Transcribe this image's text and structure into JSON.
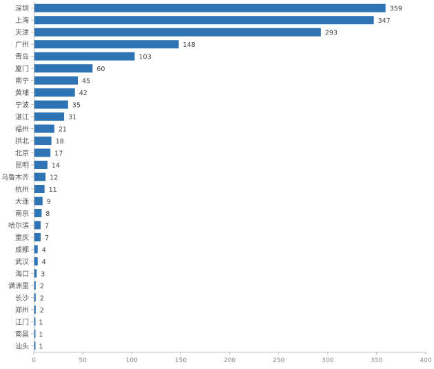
{
  "chart_data": {
    "type": "bar",
    "orientation": "horizontal",
    "categories": [
      "深圳",
      "上海",
      "天津",
      "广州",
      "青岛",
      "厦门",
      "南宁",
      "黄埔",
      "宁波",
      "湛江",
      "福州",
      "拱北",
      "北京",
      "昆明",
      "乌鲁木齐",
      "杭州",
      "大连",
      "南京",
      "哈尔滨",
      "重庆",
      "成都",
      "武汉",
      "海口",
      "满洲里",
      "长沙",
      "郑州",
      "江门",
      "南昌",
      "汕头"
    ],
    "values": [
      359,
      347,
      293,
      148,
      103,
      60,
      45,
      42,
      35,
      31,
      21,
      18,
      17,
      14,
      12,
      11,
      9,
      8,
      7,
      7,
      4,
      4,
      3,
      2,
      2,
      2,
      1,
      1,
      1
    ],
    "xlim": [
      0,
      400
    ],
    "xticks": [
      0,
      50,
      100,
      150,
      200,
      250,
      300,
      350,
      400
    ],
    "bar_color": "#2e74b5",
    "axis_color": "#bbbbbb",
    "grid": false,
    "data_labels": true
  }
}
